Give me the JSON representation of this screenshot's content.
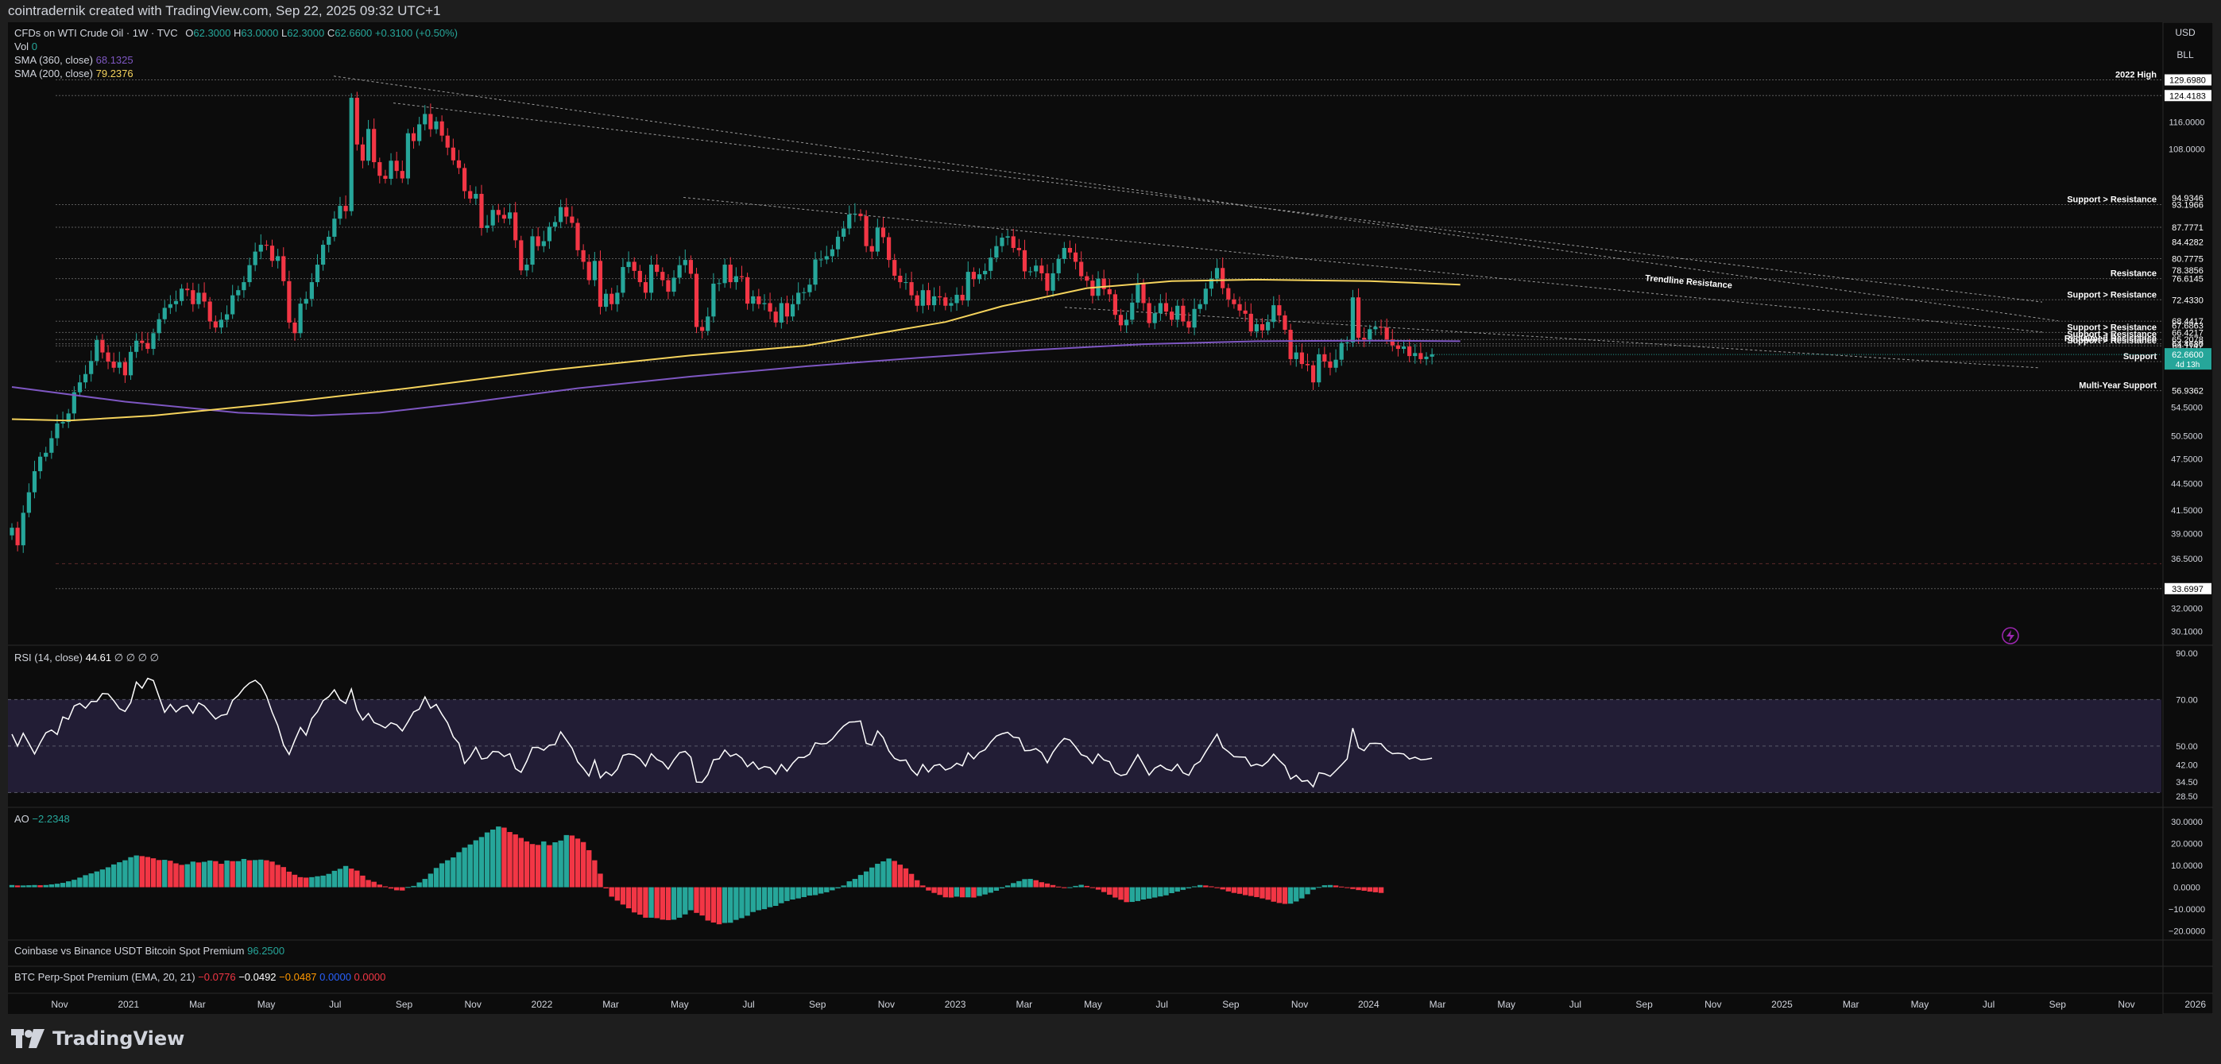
{
  "header": {
    "credit": "cointradernik created with TradingView.com, Sep 22, 2025 09:32 UTC+1"
  },
  "legend": {
    "symbol": "CFDs on WTI Crude Oil · 1W · TVC",
    "ohlc": {
      "o_label": "O",
      "o": "62.3000",
      "h_label": "H",
      "h": "63.0000",
      "l_label": "L",
      "l": "62.3000",
      "c_label": "C",
      "c": "62.6600",
      "change": "+0.3100 (+0.50%)"
    },
    "vol_label": "Vol",
    "vol_value": "0",
    "sma360_label": "SMA (360, close)",
    "sma360_value": "68.1325",
    "sma200_label": "SMA (200, close)",
    "sma200_value": "79.2376",
    "rsi_label": "RSI (14, close)",
    "rsi_value": "44.61",
    "rsi_extra": "∅ ∅ ∅ ∅",
    "ao_label": "AO",
    "ao_value": "−2.2348",
    "coinbase_label": "Coinbase vs Binance USDT Bitcoin Spot Premium",
    "coinbase_value": "96.2500",
    "perp_label": "BTC Perp-Spot Premium (EMA, 20, 21)",
    "perp_v1": "−0.0776",
    "perp_v2": "−0.0492",
    "perp_v3": "−0.0487",
    "perp_v4": "0.0000",
    "perp_v5": "0.0000"
  },
  "axis_buttons": {
    "currency": "USD",
    "unit": "BLL"
  },
  "brand": {
    "name": "TradingView"
  },
  "colors": {
    "up": "#26a69a",
    "down": "#f23645",
    "sma200": "#f5d35c",
    "sma360": "#7e57c2",
    "rsi_line": "#ffffff",
    "rsi_band": "#221d35",
    "bg": "#0c0c0c",
    "grid": "#2a2a2a",
    "text": "#d1d4dc"
  },
  "chart_data": [
    {
      "type": "candlestick",
      "title": "CFDs on WTI Crude Oil · 1W · TVC",
      "y_scale": "log",
      "ylim": [
        29.5,
        136
      ],
      "x_ticks": [
        "Nov",
        "2021",
        "Mar",
        "May",
        "Jul",
        "Sep",
        "Nov",
        "2022",
        "Mar",
        "May",
        "Jul",
        "Sep",
        "Nov",
        "2023",
        "Mar",
        "May",
        "Jul",
        "Sep",
        "Nov",
        "2024",
        "Mar",
        "May",
        "Jul",
        "Sep",
        "Nov",
        "2025",
        "Mar",
        "May",
        "Jul",
        "Sep",
        "Nov",
        "2026"
      ],
      "y_ticks": [
        "116.0000",
        "108.0000",
        "54.5000",
        "50.5000",
        "47.5000",
        "44.5000",
        "41.5000",
        "39.0000",
        "36.5000",
        "32.0000",
        "30.1000"
      ],
      "price_labels": [
        "129.6980",
        "124.4183",
        "94.9346",
        "93.1966",
        "87.7771",
        "84.4282",
        "80.7775",
        "78.3856",
        "76.6145",
        "72.4330",
        "68.4417",
        "67.6863",
        "66.4217",
        "65.2078",
        "64.4680",
        "64.1147",
        "61.5047",
        "56.9362",
        "33.6997"
      ],
      "current_price": "62.6600",
      "countdown": "4d 13h",
      "levels": [
        {
          "label": "2022 High",
          "value": 129.698
        },
        {
          "label": "",
          "value": 124.4183
        },
        {
          "label": "Support > Resistance",
          "value": 93.1966
        },
        {
          "label": "",
          "value": 87.7771
        },
        {
          "label": "",
          "value": 80.7775
        },
        {
          "label": "Resistance",
          "value": 76.6145
        },
        {
          "label": "Support > Resistance",
          "value": 72.433
        },
        {
          "label": "",
          "value": 68.4417
        },
        {
          "label": "Support > Resistance",
          "value": 66.4217
        },
        {
          "label": "Support > Resistance",
          "value": 65.2078
        },
        {
          "label": "Reclaimed Resistance",
          "value": 64.468
        },
        {
          "label": "Support > Resistance",
          "value": 64.1147
        },
        {
          "label": "Support",
          "value": 61.5047
        },
        {
          "label": "Multi-Year Support",
          "value": 56.9362
        },
        {
          "label": "",
          "value": 36.0
        },
        {
          "label": "",
          "value": 33.6997
        }
      ],
      "annotations": [
        "Trendline Resistance"
      ],
      "closes": [
        39.6,
        37.8,
        41.2,
        43.5,
        46.0,
        47.8,
        48.3,
        50.2,
        52.2,
        52.4,
        53.6,
        56.7,
        58.2,
        59.5,
        61.6,
        65.1,
        63.0,
        61.5,
        60.5,
        61.4,
        59.3,
        63.1,
        65.0,
        64.6,
        63.6,
        66.3,
        68.8,
        70.9,
        71.6,
        72.2,
        74.6,
        74.3,
        71.6,
        73.8,
        72.1,
        68.4,
        67.3,
        68.7,
        69.7,
        73.3,
        74.3,
        75.9,
        79.4,
        82.3,
        83.8,
        83.6,
        80.3,
        81.3,
        76.1,
        68.2,
        66.3,
        71.7,
        72.6,
        75.9,
        79.5,
        83.8,
        85.6,
        89.8,
        92.9,
        91.6,
        123.7,
        109.3,
        104.7,
        113.9,
        104.3,
        100.6,
        99.8,
        104.7,
        101.9,
        99.9,
        112.6,
        110.3,
        115.3,
        118.5,
        113.8,
        116.2,
        111.9,
        108.4,
        104.8,
        102.7,
        96.6,
        94.7,
        95.9,
        87.6,
        88.2,
        91.9,
        90.7,
        89.8,
        91.3,
        84.8,
        78.3,
        79.5,
        85.7,
        83.5,
        84.6,
        87.9,
        89.0,
        92.6,
        90.3,
        88.8,
        82.6,
        80.1,
        76.3,
        80.3,
        71.1,
        73.6,
        71.6,
        73.8,
        79.0,
        80.1,
        78.2,
        75.9,
        73.8,
        79.5,
        78.0,
        76.3,
        74.0,
        76.8,
        79.4,
        80.5,
        77.6,
        67.4,
        66.7,
        69.3,
        75.6,
        75.7,
        79.5,
        75.9,
        77.1,
        76.9,
        71.7,
        73.1,
        71.6,
        71.8,
        70.2,
        68.2,
        71.8,
        69.3,
        71.6,
        73.8,
        73.9,
        75.4,
        80.6,
        80.6,
        81.3,
        82.8,
        85.6,
        87.5,
        90.8,
        91.0,
        90.4,
        83.5,
        82.3,
        87.7,
        85.5,
        80.5,
        77.2,
        75.9,
        75.9,
        73.3,
        71.3,
        74.3,
        71.4,
        73.1,
        72.9,
        71.3,
        71.8,
        73.4,
        72.3,
        78.0,
        76.5,
        77.5,
        78.2,
        81.0,
        83.5,
        85.4,
        85.7,
        83.1,
        82.6,
        78.1,
        78.1,
        79.3,
        77.7,
        74.2,
        77.7,
        80.7,
        83.1,
        82.1,
        80.1,
        77.1,
        76.2,
        73.2,
        76.6,
        74.5,
        73.5,
        69.6,
        67.7,
        68.7,
        71.9,
        75.6,
        71.8,
        68.1,
        69.9,
        71.8,
        70.2,
        68.7,
        71.3,
        68.4,
        67.3,
        70.7,
        71.6,
        74.6,
        76.6,
        78.8,
        74.7,
        72.5,
        71.6,
        70.4,
        69.8,
        66.6,
        67.9,
        66.8,
        68.3,
        71.4,
        69.5,
        66.9,
        61.9,
        63.0,
        61.1,
        60.9,
        58.2,
        62.7,
        61.5,
        60.5,
        61.8,
        64.6,
        64.7,
        72.9,
        65.5,
        65.2,
        67.0,
        67.4,
        67.3,
        65.2,
        64.2,
        63.6,
        64.0,
        62.4,
        62.9,
        61.9,
        62.3,
        62.7
      ],
      "sma200_closes_note": "",
      "sma200": [
        [
          0,
          52.8
        ],
        [
          10,
          52.6
        ],
        [
          25,
          53.3
        ],
        [
          45,
          54.9
        ],
        [
          70,
          57.3
        ],
        [
          95,
          60.1
        ],
        [
          120,
          62.5
        ],
        [
          140,
          64.1
        ],
        [
          165,
          68.3
        ],
        [
          175,
          71.2
        ],
        [
          190,
          74.7
        ],
        [
          205,
          76.1
        ],
        [
          220,
          76.4
        ],
        [
          240,
          76.1
        ],
        [
          256,
          75.4
        ]
      ],
      "sma360": [
        [
          0,
          57.5
        ],
        [
          20,
          55.3
        ],
        [
          40,
          53.7
        ],
        [
          53,
          53.3
        ],
        [
          65,
          53.7
        ],
        [
          80,
          55.1
        ],
        [
          100,
          57.3
        ],
        [
          120,
          59.1
        ],
        [
          140,
          60.7
        ],
        [
          160,
          62.1
        ],
        [
          180,
          63.4
        ],
        [
          200,
          64.4
        ],
        [
          220,
          64.9
        ],
        [
          240,
          65.0
        ],
        [
          256,
          64.9
        ]
      ]
    },
    {
      "type": "line",
      "title": "RSI (14, close)",
      "ylim": [
        25,
        92
      ],
      "y_ticks": [
        "90.00",
        "70.00",
        "50.00",
        "42.00",
        "34.50",
        "28.50"
      ],
      "bands": [
        70,
        50,
        30
      ],
      "series": [
        {
          "name": "RSI (14, close)",
          "values": [
            55.1,
            50.0,
            55.5,
            51.1,
            46.6,
            51.4,
            55.7,
            56.9,
            55.0,
            62.5,
            61.5,
            67.2,
            68.3,
            66.3,
            69.2,
            69.2,
            72.6,
            72.4,
            69.5,
            66.1,
            64.9,
            68.7,
            77.5,
            74.9,
            79.1,
            78.2,
            71.3,
            64.5,
            67.9,
            64.7,
            66.8,
            67.5,
            64.1,
            68.6,
            67.2,
            64.4,
            61.6,
            63.2,
            63.7,
            69.6,
            71.8,
            74.9,
            77.1,
            78.3,
            76.2,
            71.5,
            64.5,
            58.8,
            50.5,
            46.4,
            52.5,
            58.0,
            54.7,
            61.8,
            64.8,
            69.5,
            71.2,
            74.2,
            69.8,
            68.3,
            74.5,
            65.4,
            61.2,
            64.0,
            60.1,
            59.1,
            57.8,
            60.0,
            59.1,
            56.5,
            60.4,
            64.7,
            65.9,
            71.1,
            66.3,
            67.9,
            63.7,
            60.0,
            54.0,
            51.2,
            42.5,
            45.4,
            49.5,
            44.4,
            44.9,
            47.7,
            47.5,
            45.5,
            46.7,
            40.3,
            38.7,
            43.5,
            49.4,
            49.4,
            48.2,
            50.4,
            50.6,
            56.1,
            52.6,
            49.1,
            43.2,
            40.4,
            37.1,
            43.9,
            36.3,
            38.9,
            37.3,
            40.0,
            46.0,
            46.6,
            46.2,
            44.5,
            41.3,
            46.7,
            44.2,
            43.1,
            40.1,
            44.0,
            47.1,
            47.7,
            45.2,
            34.5,
            34.4,
            37.7,
            44.1,
            44.5,
            48.3,
            45.6,
            46.6,
            44.8,
            41.1,
            43.2,
            40.0,
            41.2,
            40.7,
            37.9,
            42.1,
            39.2,
            42.6,
            45.1,
            45.1,
            46.5,
            51.4,
            50.9,
            51.1,
            53.0,
            56.0,
            58.6,
            60.3,
            60.4,
            60.8,
            51.2,
            50.4,
            56.5,
            53.6,
            47.9,
            44.7,
            43.7,
            44.0,
            39.8,
            37.4,
            42.1,
            38.8,
            41.6,
            42.1,
            39.7,
            40.6,
            42.6,
            41.5,
            47.1,
            44.5,
            47.3,
            48.4,
            51.7,
            54.3,
            55.3,
            55.9,
            53.8,
            53.5,
            48.0,
            48.1,
            48.9,
            47.2,
            42.8,
            47.4,
            50.7,
            53.3,
            52.6,
            49.6,
            46.3,
            45.4,
            42.5,
            46.6,
            44.0,
            43.3,
            38.6,
            37.3,
            37.9,
            42.1,
            46.3,
            42.0,
            37.5,
            40.5,
            41.8,
            40.1,
            39.4,
            42.2,
            38.5,
            37.4,
            41.9,
            43.4,
            47.5,
            51.3,
            55.1,
            49.4,
            47.6,
            45.4,
            45.3,
            45.2,
            41.4,
            42.2,
            41.4,
            43.4,
            46.5,
            43.8,
            41.5,
            35.8,
            37.4,
            34.8,
            35.2,
            32.5,
            38.5,
            38.1,
            37.0,
            39.4,
            41.9,
            44.5,
            57.7,
            49.3,
            48.0,
            51.1,
            51.2,
            51.0,
            48.2,
            46.7,
            46.9,
            46.6,
            44.4,
            45.2,
            44.1,
            44.3,
            44.8
          ]
        }
      ]
    },
    {
      "type": "bar",
      "title": "AO",
      "ylim": [
        -23,
        35
      ],
      "y_ticks": [
        "30.0000",
        "20.0000",
        "10.0000",
        "0.0000",
        "−10.0000",
        "−20.0000"
      ],
      "series": [
        {
          "name": "AO",
          "values": [
            1.0,
            0.8,
            0.8,
            0.9,
            1.0,
            0.9,
            1.0,
            1.3,
            1.6,
            2.0,
            2.7,
            3.4,
            4.4,
            5.5,
            6.3,
            7.2,
            8.1,
            9.1,
            10.4,
            11.4,
            12.3,
            13.7,
            14.5,
            14.2,
            13.8,
            13.2,
            12.4,
            12.5,
            12.1,
            10.9,
            10.2,
            10.5,
            11.7,
            11.3,
            11.6,
            12.2,
            11.9,
            10.7,
            12.2,
            11.9,
            11.9,
            12.9,
            12.3,
            12.4,
            12.6,
            12.3,
            11.7,
            10.2,
            9.2,
            7.1,
            5.7,
            4.6,
            4.4,
            4.6,
            5.0,
            5.3,
            6.1,
            7.5,
            8.4,
            9.7,
            8.5,
            7.6,
            5.3,
            3.3,
            2.5,
            1.2,
            0.4,
            -0.6,
            -1.4,
            -1.5,
            0.1,
            0.6,
            2.2,
            3.8,
            6.2,
            8.8,
            10.9,
            12.3,
            13.6,
            16.0,
            18.1,
            19.5,
            21.4,
            22.9,
            25.0,
            26.3,
            27.7,
            27.2,
            25.2,
            24.1,
            22.5,
            20.9,
            19.7,
            19.3,
            20.9,
            19.2,
            20.5,
            21.3,
            23.8,
            23.6,
            22.2,
            20.6,
            16.9,
            12.3,
            6.2,
            -0.5,
            -4.3,
            -6.1,
            -7.9,
            -9.6,
            -11.5,
            -12.5,
            -13.9,
            -13.9,
            -14.1,
            -14.8,
            -15.0,
            -14.8,
            -13.9,
            -12.4,
            -10.5,
            -11.7,
            -12.9,
            -15.2,
            -16.1,
            -16.9,
            -16.3,
            -16.2,
            -14.9,
            -14.1,
            -13.0,
            -11.3,
            -10.5,
            -10.0,
            -9.1,
            -8.5,
            -7.3,
            -6.3,
            -5.6,
            -5.1,
            -4.5,
            -3.8,
            -3.6,
            -2.9,
            -2.3,
            -1.4,
            -0.5,
            0.8,
            2.7,
            3.8,
            5.6,
            7.2,
            9.0,
            10.7,
            11.8,
            13.1,
            12.0,
            10.3,
            8.6,
            6.1,
            3.2,
            0.8,
            -1.5,
            -2.6,
            -3.5,
            -4.6,
            -4.7,
            -4.3,
            -4.6,
            -4.6,
            -4.7,
            -4.0,
            -3.3,
            -2.5,
            -1.6,
            -0.5,
            0.8,
            1.9,
            2.8,
            3.7,
            3.8,
            3.2,
            2.3,
            1.7,
            1.0,
            0.3,
            -0.4,
            -0.2,
            0.6,
            1.1,
            0.6,
            -0.2,
            -1.1,
            -2.2,
            -3.4,
            -4.7,
            -5.7,
            -6.8,
            -6.7,
            -6.3,
            -5.6,
            -5.2,
            -4.7,
            -4.2,
            -3.7,
            -2.7,
            -2.0,
            -1.2,
            -0.5,
            0.4,
            1.0,
            0.8,
            0.4,
            -0.4,
            -1.0,
            -1.9,
            -2.6,
            -3.0,
            -3.6,
            -4.0,
            -4.5,
            -5.1,
            -5.7,
            -6.6,
            -7.2,
            -7.6,
            -7.5,
            -6.5,
            -5.1,
            -3.2,
            -1.1,
            0.1,
            0.9,
            1.0,
            0.8,
            0.3,
            -0.3,
            -0.8,
            -1.3,
            -1.6,
            -2.0,
            -2.3,
            -2.6
          ]
        }
      ]
    },
    {
      "type": "line",
      "title": "Coinbase vs Binance USDT Bitcoin Spot Premium",
      "series": []
    },
    {
      "type": "line",
      "title": "BTC Perp-Spot Premium (EMA, 20, 21)",
      "series": []
    }
  ]
}
